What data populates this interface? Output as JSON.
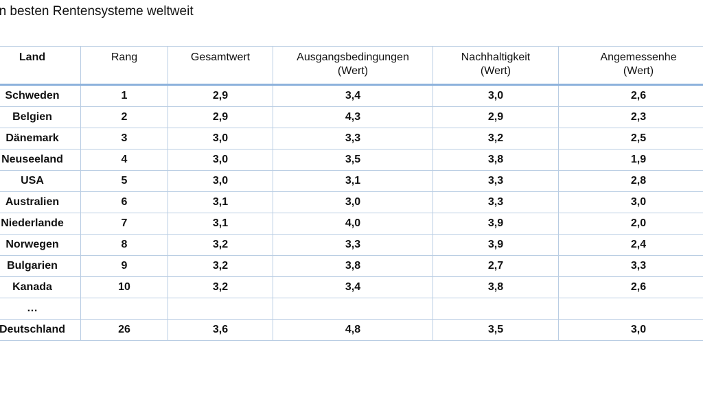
{
  "title": "hn besten Rentensysteme weltweit",
  "table": {
    "headers": [
      {
        "line1": "Land",
        "line2": ""
      },
      {
        "line1": "Rang",
        "line2": ""
      },
      {
        "line1": "Gesamtwert",
        "line2": ""
      },
      {
        "line1": "Ausgangsbedingungen",
        "line2": "(Wert)"
      },
      {
        "line1": "Nachhaltigkeit",
        "line2": "(Wert)"
      },
      {
        "line1": "Angemessenhe",
        "line2": "(Wert)"
      }
    ],
    "rows": [
      {
        "land": "Schweden",
        "rang": "1",
        "gesamt": "2,9",
        "ausgang": "3,4",
        "nachhalt": "3,0",
        "angem": "2,6"
      },
      {
        "land": "Belgien",
        "rang": "2",
        "gesamt": "2,9",
        "ausgang": "4,3",
        "nachhalt": "2,9",
        "angem": "2,3"
      },
      {
        "land": "Dänemark",
        "rang": "3",
        "gesamt": "3,0",
        "ausgang": "3,3",
        "nachhalt": "3,2",
        "angem": "2,5"
      },
      {
        "land": "Neuseeland",
        "rang": "4",
        "gesamt": "3,0",
        "ausgang": "3,5",
        "nachhalt": "3,8",
        "angem": "1,9"
      },
      {
        "land": "USA",
        "rang": "5",
        "gesamt": "3,0",
        "ausgang": "3,1",
        "nachhalt": "3,3",
        "angem": "2,8"
      },
      {
        "land": "Australien",
        "rang": "6",
        "gesamt": "3,1",
        "ausgang": "3,0",
        "nachhalt": "3,3",
        "angem": "3,0"
      },
      {
        "land": "Niederlande",
        "rang": "7",
        "gesamt": "3,1",
        "ausgang": "4,0",
        "nachhalt": "3,9",
        "angem": "2,0"
      },
      {
        "land": "Norwegen",
        "rang": "8",
        "gesamt": "3,2",
        "ausgang": "3,3",
        "nachhalt": "3,9",
        "angem": "2,4"
      },
      {
        "land": "Bulgarien",
        "rang": "9",
        "gesamt": "3,2",
        "ausgang": "3,8",
        "nachhalt": "2,7",
        "angem": "3,3"
      },
      {
        "land": "Kanada",
        "rang": "10",
        "gesamt": "3,2",
        "ausgang": "3,4",
        "nachhalt": "3,8",
        "angem": "2,6"
      },
      {
        "land": "…",
        "rang": "",
        "gesamt": "",
        "ausgang": "",
        "nachhalt": "",
        "angem": ""
      },
      {
        "land": "Deutschland",
        "rang": "26",
        "gesamt": "3,6",
        "ausgang": "4,8",
        "nachhalt": "3,5",
        "angem": "3,0"
      }
    ]
  }
}
